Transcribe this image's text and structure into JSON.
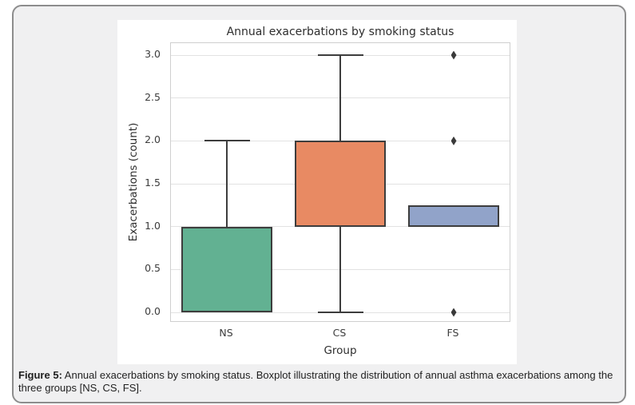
{
  "colors": {
    "page_background": "#ffffff",
    "card_background": "#f0f0f1",
    "card_border": "#8d8d8d",
    "plot_background": "#ffffff",
    "plot_border": "#cfcfcf",
    "gridline": "#e2e2e2",
    "box_edge": "#3d3d3d",
    "whisker": "#3d3d3d",
    "outlier": "#3a3a3a"
  },
  "chart_data": {
    "type": "boxplot",
    "title": "Annual exacerbations by smoking status",
    "xlabel": "Group",
    "ylabel": "Exacerbations (count)",
    "categories": [
      "NS",
      "CS",
      "FS"
    ],
    "yticks": [
      0.0,
      0.5,
      1.0,
      1.5,
      2.0,
      2.5,
      3.0
    ],
    "ylim": [
      -0.12,
      3.14
    ],
    "grid": true,
    "legend": "none",
    "groups": [
      {
        "label": "NS",
        "color": "#62b192",
        "q1": 0.0,
        "q3": 1.0,
        "whisker_low": 0.0,
        "whisker_high": 2.0,
        "outliers": []
      },
      {
        "label": "CS",
        "color": "#e88a63",
        "q1": 1.0,
        "q3": 2.0,
        "whisker_low": 0.0,
        "whisker_high": 3.0,
        "outliers": []
      },
      {
        "label": "FS",
        "color": "#91a3c9",
        "q1": 1.0,
        "q3": 1.25,
        "whisker_low": 1.0,
        "whisker_high": 1.25,
        "outliers": [
          0.0,
          2.0,
          3.0
        ]
      }
    ]
  },
  "caption": {
    "label": "Figure 5:",
    "text": " Annual exacerbations by smoking status. Boxplot illustrating the distribution of annual asthma exacerbations among the three groups [NS, CS, FS]."
  }
}
